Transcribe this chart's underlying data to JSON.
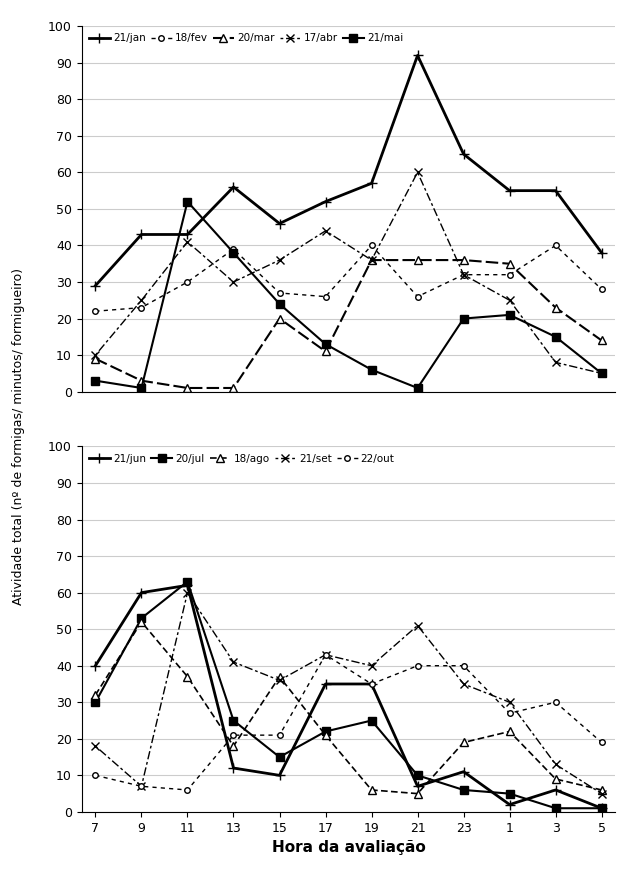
{
  "x_labels": [
    "7",
    "9",
    "11",
    "13",
    "15",
    "17",
    "19",
    "21",
    "23",
    "1",
    "3",
    "5"
  ],
  "x_positions": [
    0,
    1,
    2,
    3,
    4,
    5,
    6,
    7,
    8,
    9,
    10,
    11
  ],
  "top_series": [
    {
      "label": "21/jan",
      "marker": "+",
      "markersize": 7,
      "linewidth": 2.0,
      "color": "#000000",
      "linestyle": "-",
      "markerfacecolor": "#000000",
      "markeredgecolor": "#000000",
      "values": [
        29,
        43,
        43,
        56,
        46,
        52,
        57,
        92,
        65,
        55,
        55,
        38
      ]
    },
    {
      "label": "18/fev",
      "marker": "o",
      "markersize": 4,
      "linewidth": 1.0,
      "color": "#000000",
      "linestyle": "--",
      "dashes": [
        3,
        3
      ],
      "markerfacecolor": "white",
      "markeredgecolor": "#000000",
      "values": [
        22,
        23,
        30,
        39,
        27,
        26,
        40,
        26,
        32,
        32,
        40,
        28
      ]
    },
    {
      "label": "20/mar",
      "marker": "^",
      "markersize": 6,
      "linewidth": 1.5,
      "color": "#000000",
      "linestyle": "--",
      "dashes": [
        6,
        2
      ],
      "markerfacecolor": "white",
      "markeredgecolor": "#000000",
      "values": [
        9,
        3,
        1,
        1,
        20,
        11,
        36,
        36,
        36,
        35,
        23,
        14
      ]
    },
    {
      "label": "17/abr",
      "marker": "x",
      "markersize": 6,
      "linewidth": 1.0,
      "color": "#000000",
      "linestyle": "--",
      "dashes": [
        2,
        2,
        6,
        2
      ],
      "markerfacecolor": "#000000",
      "markeredgecolor": "#000000",
      "values": [
        10,
        25,
        41,
        30,
        36,
        44,
        36,
        60,
        32,
        25,
        8,
        5
      ]
    },
    {
      "label": "21/mai",
      "marker": "s",
      "markersize": 6,
      "linewidth": 1.5,
      "color": "#000000",
      "linestyle": "-",
      "dashes": [],
      "markerfacecolor": "#000000",
      "markeredgecolor": "#000000",
      "values": [
        3,
        1,
        52,
        38,
        24,
        13,
        6,
        1,
        20,
        21,
        15,
        5
      ]
    }
  ],
  "bottom_series": [
    {
      "label": "21/jun",
      "marker": "+",
      "markersize": 7,
      "linewidth": 2.0,
      "color": "#000000",
      "linestyle": "-",
      "dashes": [],
      "markerfacecolor": "#000000",
      "markeredgecolor": "#000000",
      "values": [
        40,
        60,
        62,
        12,
        10,
        35,
        35,
        7,
        11,
        2,
        6,
        1
      ]
    },
    {
      "label": "20/jul",
      "marker": "s",
      "markersize": 6,
      "linewidth": 1.5,
      "color": "#000000",
      "linestyle": "-",
      "dashes": [],
      "markerfacecolor": "#000000",
      "markeredgecolor": "#000000",
      "values": [
        30,
        53,
        63,
        25,
        15,
        22,
        25,
        10,
        6,
        5,
        1,
        1
      ]
    },
    {
      "label": "18/ago",
      "marker": "^",
      "markersize": 6,
      "linewidth": 1.2,
      "color": "#000000",
      "linestyle": "--",
      "dashes": [
        4,
        2
      ],
      "markerfacecolor": "white",
      "markeredgecolor": "#000000",
      "values": [
        32,
        52,
        37,
        18,
        37,
        21,
        6,
        5,
        19,
        22,
        9,
        6
      ]
    },
    {
      "label": "21/set",
      "marker": "x",
      "markersize": 6,
      "linewidth": 1.0,
      "color": "#000000",
      "linestyle": "--",
      "dashes": [
        2,
        2,
        6,
        2
      ],
      "markerfacecolor": "#000000",
      "markeredgecolor": "#000000",
      "values": [
        18,
        7,
        60,
        41,
        36,
        43,
        40,
        51,
        35,
        30,
        13,
        5
      ]
    },
    {
      "label": "22/out",
      "marker": "o",
      "markersize": 4,
      "linewidth": 1.0,
      "color": "#000000",
      "linestyle": "--",
      "dashes": [
        3,
        3
      ],
      "markerfacecolor": "white",
      "markeredgecolor": "#000000",
      "values": [
        10,
        7,
        6,
        21,
        21,
        43,
        35,
        40,
        40,
        27,
        30,
        19
      ]
    }
  ],
  "ylabel": "Atividade total (nº de formigas/ minutos/ formigueiro)",
  "xlabel": "Hora da avaliação",
  "ylim": [
    0,
    100
  ],
  "yticks": [
    0,
    10,
    20,
    30,
    40,
    50,
    60,
    70,
    80,
    90,
    100
  ],
  "background_color": "#ffffff",
  "grid_color": "#cccccc"
}
